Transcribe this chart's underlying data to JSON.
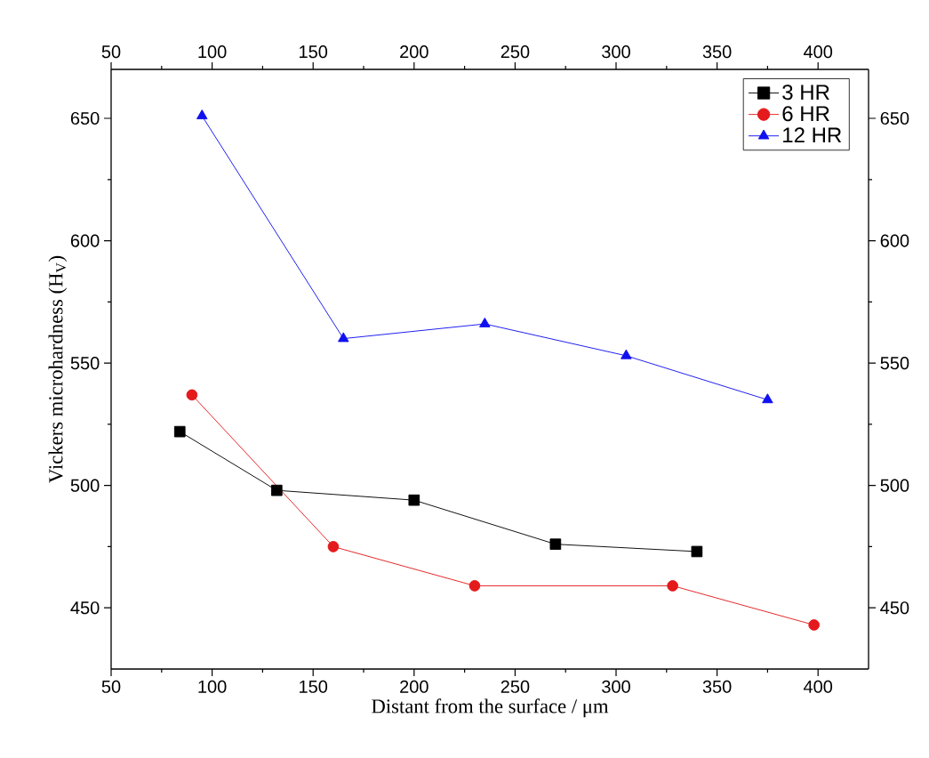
{
  "chart_data": {
    "type": "line",
    "xlabel": "Distant from the surface / μm",
    "ylabel": "Vickers microhardness (H$_{V}$)",
    "series": [
      {
        "name": "3 HR",
        "color": "#000000",
        "marker": "square",
        "x": [
          84,
          132,
          200,
          270,
          340
        ],
        "values": [
          522,
          498,
          494,
          476,
          473
        ]
      },
      {
        "name": "6 HR",
        "color": "#e41a1c",
        "marker": "circle",
        "x": [
          90,
          160,
          230,
          328,
          398
        ],
        "values": [
          537,
          475,
          459,
          459,
          443
        ]
      },
      {
        "name": "12 HR",
        "color": "#1010f0",
        "marker": "triangle",
        "x": [
          95,
          165,
          235,
          305,
          375
        ],
        "values": [
          651,
          560,
          566,
          553,
          535
        ]
      }
    ],
    "xlim": [
      50,
      425
    ],
    "xticks": [
      50,
      100,
      150,
      200,
      250,
      300,
      350,
      400
    ],
    "x2lim": [
      50,
      425
    ],
    "x2ticks": [
      50,
      100,
      150,
      200,
      250,
      300,
      350,
      400
    ],
    "ylim": [
      425,
      670
    ],
    "yticks": [
      450,
      500,
      550,
      600,
      650
    ],
    "y2lim": [
      425,
      670
    ],
    "y2ticks": [
      450,
      500,
      550,
      600,
      650
    ],
    "grid": false,
    "legend": "top right"
  }
}
